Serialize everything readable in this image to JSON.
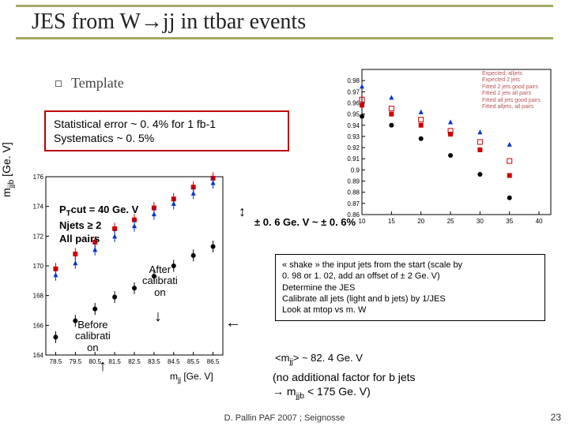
{
  "title": "JES from W→jj in ttbar events",
  "bullet": "Template",
  "stat_box": {
    "l1": "Statistical error ~ 0. 4% for 1 fb-1",
    "l2": "Systematics ~ 0. 5%"
  },
  "ylabel": "mjjb [Ge. V]",
  "ptcut": {
    "l1": "PTcut = 40 Ge. V",
    "l2": "Njets ≥ 2",
    "l3": "All pairs"
  },
  "after": "After calibrati on",
  "before": "Before calibrati on",
  "pm06": "± 0. 6 Ge. V ~ ± 0. 6%",
  "shake": {
    "l1": "« shake » the input jets from the start (scale by",
    "l2": "0. 98 or 1. 02, add an offset of ± 2 Ge. V)",
    "l3": "Determine the JES",
    "l4": "Calibrate all jets (light and b jets) by 1/JES",
    "l5": "Look at mtop vs m. W"
  },
  "mjj_line": "<mjj> ~ 82. 4 Ge. V",
  "noadd": {
    "l1": "(no additional factor for b jets",
    "l2": "→ mjjb < 175 Ge. V)"
  },
  "xlabel1": "mjj [Ge. V]",
  "footer": "D. Pallin  PAF 2007 ; Seignosse",
  "pagenum": "23",
  "legend2": {
    "l1": "Expected, alljets",
    "l2": "Expected 2 jets",
    "l3": "Fitted 2 jets good pairs",
    "l4": "Fitted 2 jets all pairs",
    "l5": "Fitted all jets good pairs",
    "l6": "Fitted alljets, all pairs"
  },
  "chart1": {
    "type": "scatter",
    "xlim": [
      78,
      87
    ],
    "ylim": [
      164,
      176
    ],
    "xticks": [
      78.5,
      79.5,
      80.5,
      81.5,
      82.5,
      83.5,
      84.5,
      85.5,
      86.5
    ],
    "yticks": [
      164,
      166,
      168,
      170,
      172,
      174,
      176
    ],
    "series": [
      {
        "color": "#000000",
        "marker": "circle",
        "pts": [
          [
            78.5,
            165.2
          ],
          [
            79.5,
            166.3
          ],
          [
            80.5,
            167.1
          ],
          [
            81.5,
            167.9
          ],
          [
            82.5,
            168.5
          ],
          [
            83.5,
            169.3
          ],
          [
            84.5,
            170.0
          ],
          [
            85.5,
            170.7
          ],
          [
            86.5,
            171.3
          ]
        ]
      },
      {
        "color": "#cc0000",
        "marker": "square",
        "pts": [
          [
            78.5,
            169.8
          ],
          [
            79.5,
            170.8
          ],
          [
            80.5,
            171.6
          ],
          [
            81.5,
            172.5
          ],
          [
            82.5,
            173.1
          ],
          [
            83.5,
            173.9
          ],
          [
            84.5,
            174.5
          ],
          [
            85.5,
            175.3
          ],
          [
            86.5,
            175.9
          ]
        ]
      },
      {
        "color": "#0033cc",
        "marker": "triangle",
        "pts": [
          [
            78.5,
            169.4
          ],
          [
            79.5,
            170.2
          ],
          [
            80.5,
            171.1
          ],
          [
            81.5,
            172.0
          ],
          [
            82.5,
            172.7
          ],
          [
            83.5,
            173.5
          ],
          [
            84.5,
            174.2
          ],
          [
            85.5,
            174.9
          ],
          [
            86.5,
            175.6
          ]
        ]
      }
    ],
    "axis_color": "#000",
    "marker_size": 3,
    "err": 0.4
  },
  "chart2": {
    "type": "scatter",
    "xlim": [
      10,
      42
    ],
    "ylim": [
      0.86,
      0.99
    ],
    "xticks": [
      10,
      15,
      20,
      25,
      30,
      35,
      40
    ],
    "yticks": [
      0.86,
      0.87,
      0.88,
      0.89,
      0.9,
      0.91,
      0.92,
      0.93,
      0.94,
      0.95,
      0.96,
      0.97,
      0.98
    ],
    "series": [
      {
        "color": "#000000",
        "marker": "circle",
        "pts": [
          [
            10,
            0.948
          ],
          [
            15,
            0.94
          ],
          [
            20,
            0.928
          ],
          [
            25,
            0.913
          ],
          [
            30,
            0.896
          ],
          [
            35,
            0.875
          ]
        ]
      },
      {
        "color": "#cc0000",
        "marker": "square",
        "pts": [
          [
            10,
            0.958
          ],
          [
            15,
            0.95
          ],
          [
            20,
            0.94
          ],
          [
            25,
            0.932
          ],
          [
            30,
            0.918
          ],
          [
            35,
            0.895
          ]
        ]
      },
      {
        "color": "#0033cc",
        "marker": "triangle",
        "pts": [
          [
            10,
            0.975
          ],
          [
            15,
            0.965
          ],
          [
            20,
            0.952
          ],
          [
            25,
            0.943
          ],
          [
            30,
            0.934
          ],
          [
            35,
            0.923
          ]
        ]
      },
      {
        "color": "#cc0000",
        "marker": "square-open",
        "pts": [
          [
            10,
            0.963
          ],
          [
            15,
            0.955
          ],
          [
            20,
            0.945
          ],
          [
            25,
            0.935
          ],
          [
            30,
            0.925
          ],
          [
            35,
            0.908
          ]
        ]
      }
    ],
    "axis_color": "#000",
    "marker_size": 3
  }
}
